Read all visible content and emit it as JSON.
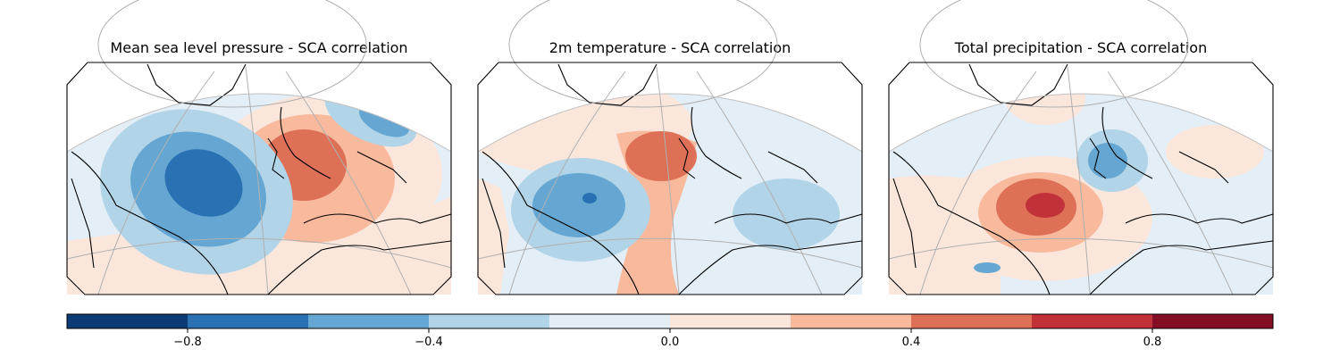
{
  "panels": [
    {
      "title": "Mean sea level pressure - SCA correlation"
    },
    {
      "title": "2m temperature - SCA correlation"
    },
    {
      "title": "Total precipitation - SCA correlation"
    }
  ],
  "colorbar": {
    "range": [
      -1.0,
      1.0
    ],
    "step": 0.2,
    "colors": [
      "#0b3b72",
      "#2a71b4",
      "#65a7d2",
      "#b1d4e8",
      "#e4eef6",
      "#fbe6dc",
      "#f8b99c",
      "#de7057",
      "#c0313a",
      "#860d26"
    ],
    "ticks": [
      {
        "value": -0.8,
        "label": "−0.8"
      },
      {
        "value": -0.4,
        "label": "−0.4"
      },
      {
        "value": 0.0,
        "label": "0.0"
      },
      {
        "value": 0.4,
        "label": "0.4"
      },
      {
        "value": 0.8,
        "label": "0.8"
      }
    ]
  }
}
